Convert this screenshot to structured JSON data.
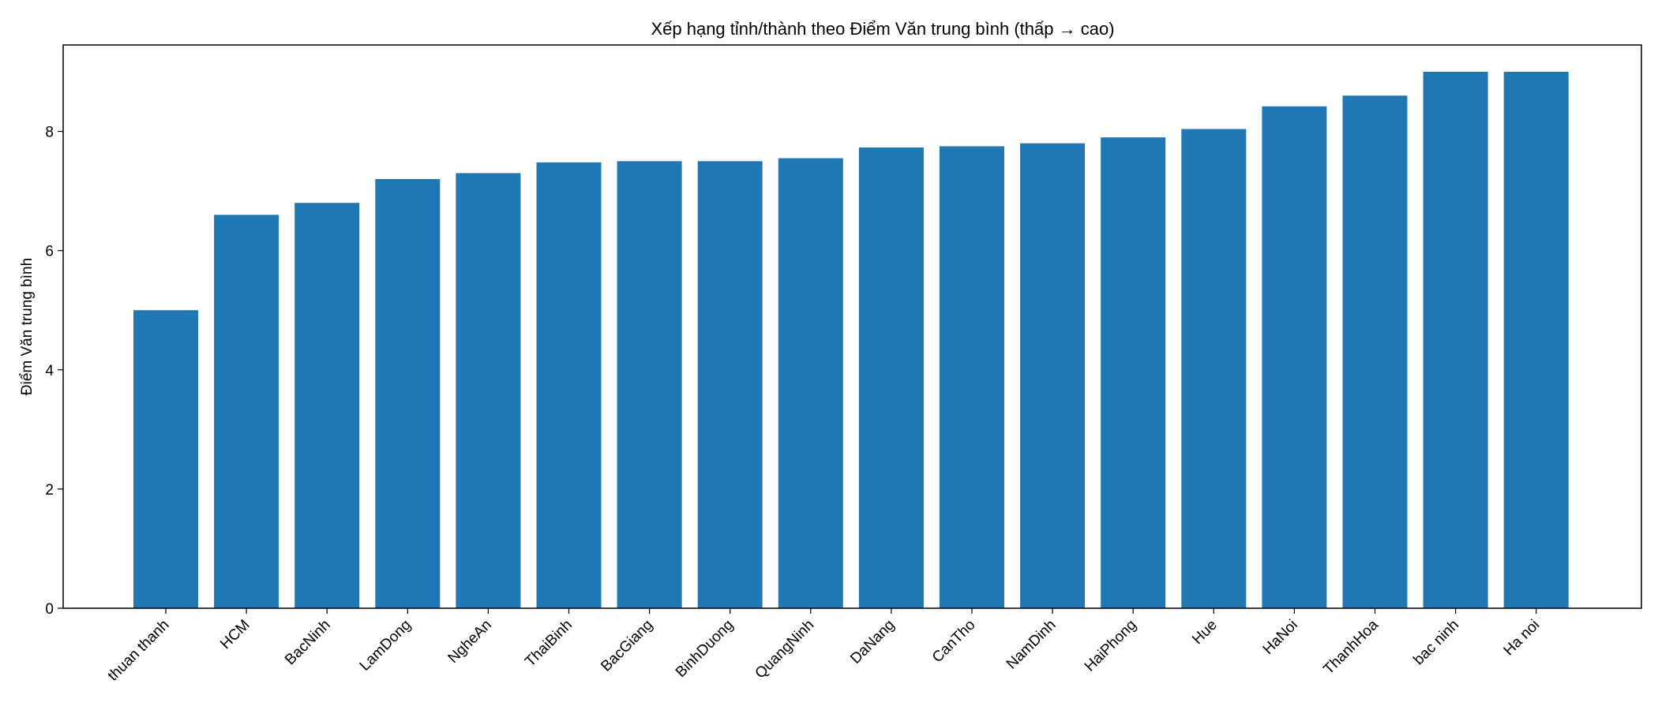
{
  "chart_data": {
    "type": "bar",
    "title": "Xếp hạng tỉnh/thành theo Điểm Văn trung bình (thấp → cao)",
    "xlabel": "",
    "ylabel": "Điểm Văn trung bình",
    "categories": [
      "thuan thanh",
      "HCM",
      "BacNinh",
      "LamDong",
      "NgheAn",
      "ThaiBinh",
      "BacGiang",
      "BinhDuong",
      "QuangNinh",
      "DaNang",
      "CanTho",
      "NamDinh",
      "HaiPhong",
      "Hue",
      "HaNoi",
      "ThanhHoa",
      "bac ninh",
      "Ha noi"
    ],
    "values": [
      5.0,
      6.6,
      6.8,
      7.2,
      7.3,
      7.48,
      7.5,
      7.5,
      7.55,
      7.73,
      7.75,
      7.8,
      7.9,
      8.04,
      8.42,
      8.6,
      9.0,
      9.0
    ],
    "ylim": [
      0,
      9.45
    ],
    "yticks": [
      0,
      2,
      4,
      6,
      8
    ],
    "bar_color": "#1f77b4",
    "grid": false,
    "legend": "none"
  }
}
